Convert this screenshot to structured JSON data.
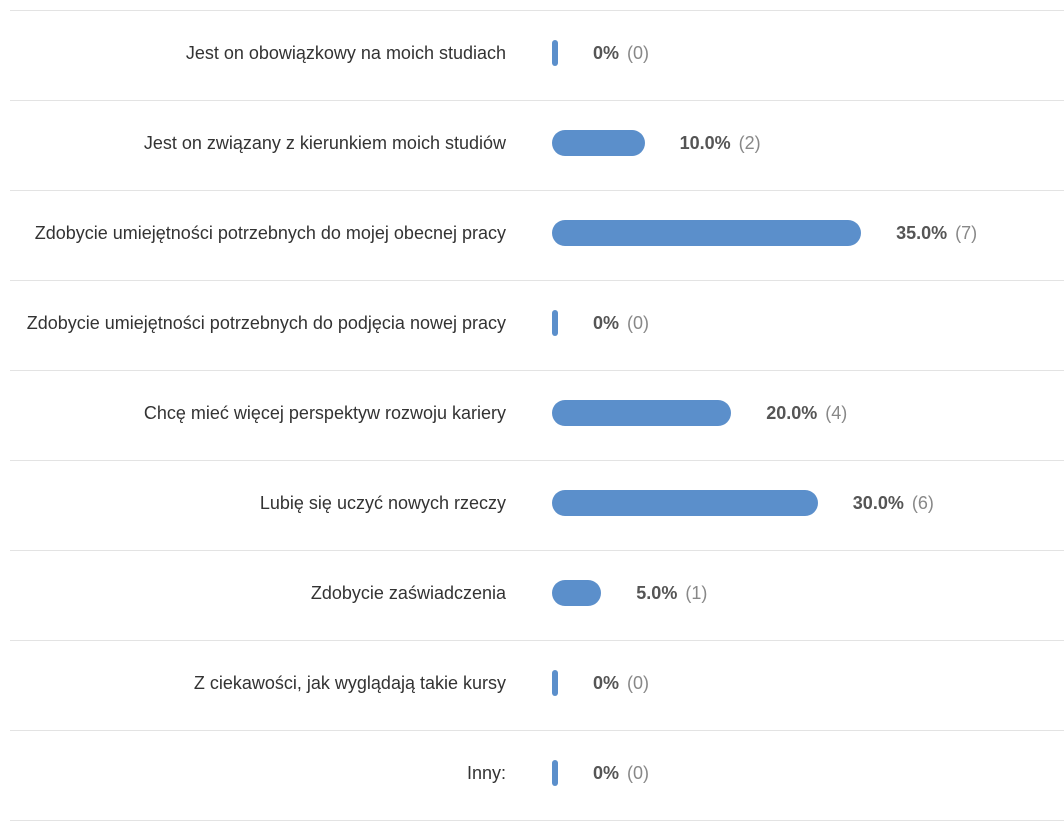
{
  "chart_data": {
    "type": "bar",
    "orientation": "horizontal",
    "color": "#5b8fcb",
    "categories": [
      "Jest on obowiązkowy na moich studiach",
      "Jest on związany z kierunkiem moich studiów",
      "Zdobycie umiejętności potrzebnych do mojej obecnej pracy",
      "Zdobycie umiejętności potrzebnych do podjęcia nowej pracy",
      "Chcę mieć więcej perspektyw rozwoju kariery",
      "Lubię się uczyć nowych rzeczy",
      "Zdobycie zaświadczenia",
      "Z ciekawości, jak wyglądają takie kursy",
      "Inny:"
    ],
    "values": [
      0,
      10,
      35,
      0,
      20,
      30,
      5,
      0,
      0
    ],
    "value_labels": [
      "0%",
      "10.0%",
      "35.0%",
      "0%",
      "20.0%",
      "30.0%",
      "5.0%",
      "0%",
      "0%"
    ],
    "counts": [
      0,
      2,
      7,
      0,
      4,
      6,
      1,
      0,
      0
    ],
    "count_labels": [
      "(0)",
      "(2)",
      "(7)",
      "(0)",
      "(4)",
      "(6)",
      "(1)",
      "(0)",
      "(0)"
    ]
  }
}
